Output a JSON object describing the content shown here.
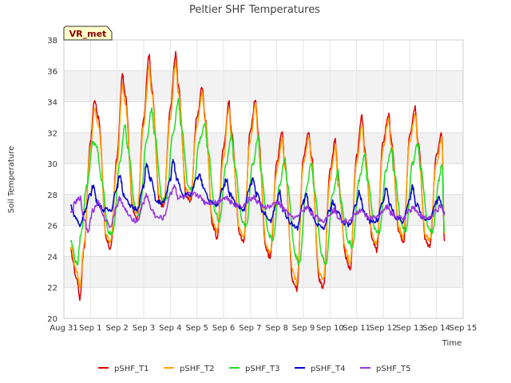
{
  "chart_data": {
    "type": "line",
    "title": "Peltier SHF Temperatures",
    "xlabel": "Time",
    "ylabel": "Soil Temperature",
    "badge": "VR_met",
    "ylim": [
      20,
      38
    ],
    "yticks": [
      20,
      22,
      24,
      26,
      28,
      30,
      32,
      34,
      36,
      38
    ],
    "xlim": [
      0,
      15
    ],
    "xticks": [
      {
        "pos": 0,
        "label": "Aug 31"
      },
      {
        "pos": 1,
        "label": "Sep 1"
      },
      {
        "pos": 2,
        "label": "Sep 2"
      },
      {
        "pos": 3,
        "label": "Sep 3"
      },
      {
        "pos": 4,
        "label": "Sep 4"
      },
      {
        "pos": 5,
        "label": "Sep 5"
      },
      {
        "pos": 6,
        "label": "Sep 6"
      },
      {
        "pos": 7,
        "label": "Sep 7"
      },
      {
        "pos": 8,
        "label": "Sep 8"
      },
      {
        "pos": 9,
        "label": "Sep 9"
      },
      {
        "pos": 10,
        "label": "Sep 10"
      },
      {
        "pos": 11,
        "label": "Sep 11"
      },
      {
        "pos": 12,
        "label": "Sep 12"
      },
      {
        "pos": 13,
        "label": "Sep 13"
      },
      {
        "pos": 14,
        "label": "Sep 14"
      },
      {
        "pos": 15,
        "label": "Sep 15"
      }
    ],
    "grid": true,
    "legend_position": "bottom",
    "series_x_note_days": "x values are days after Aug 31 00:00",
    "series": [
      {
        "name": "pSHF_T1",
        "color": "#dd0000",
        "x": [
          0.25,
          0.5,
          0.6,
          0.75,
          1.0,
          1.15,
          1.3,
          1.6,
          1.75,
          2.0,
          2.2,
          2.3,
          2.6,
          2.75,
          3.0,
          3.2,
          3.3,
          3.6,
          3.75,
          4.0,
          4.2,
          4.3,
          4.6,
          4.75,
          5.0,
          5.2,
          5.3,
          5.6,
          5.75,
          6.0,
          6.2,
          6.3,
          6.6,
          6.75,
          7.0,
          7.2,
          7.3,
          7.6,
          7.75,
          8.0,
          8.2,
          8.3,
          8.6,
          8.75,
          9.0,
          9.2,
          9.3,
          9.6,
          9.75,
          10.0,
          10.2,
          10.3,
          10.6,
          10.75,
          11.0,
          11.2,
          11.3,
          11.6,
          11.75,
          12.0,
          12.2,
          12.3,
          12.6,
          12.75,
          13.0,
          13.2,
          13.3,
          13.6,
          13.75,
          14.0,
          14.2,
          14.3
        ],
        "values": [
          24.3,
          22.5,
          21.3,
          24.5,
          31.5,
          34.1,
          33.0,
          25.0,
          24.5,
          30.5,
          35.7,
          34.5,
          27.0,
          26.5,
          33.0,
          37.0,
          35.0,
          27.5,
          27.2,
          33.5,
          37.1,
          35.0,
          28.0,
          27.5,
          33.0,
          35.0,
          33.0,
          26.0,
          25.2,
          31.0,
          34.0,
          32.0,
          25.5,
          24.9,
          32.0,
          34.2,
          32.0,
          24.5,
          23.9,
          30.0,
          32.0,
          30.0,
          22.5,
          21.9,
          30.5,
          32.0,
          30.5,
          22.5,
          22.0,
          29.5,
          31.5,
          29.0,
          24.0,
          23.1,
          30.5,
          33.0,
          31.0,
          25.0,
          24.4,
          31.5,
          33.2,
          31.5,
          25.5,
          24.8,
          32.0,
          33.7,
          31.5,
          25.0,
          24.7,
          30.5,
          31.9,
          25.0
        ]
      },
      {
        "name": "pSHF_T2",
        "color": "#ffa500",
        "x": [
          0.25,
          0.5,
          0.6,
          0.75,
          1.0,
          1.15,
          1.3,
          1.6,
          1.75,
          2.0,
          2.2,
          2.3,
          2.6,
          2.75,
          3.0,
          3.2,
          3.3,
          3.6,
          3.75,
          4.0,
          4.2,
          4.3,
          4.6,
          4.75,
          5.0,
          5.2,
          5.3,
          5.6,
          5.75,
          6.0,
          6.2,
          6.3,
          6.6,
          6.75,
          7.0,
          7.2,
          7.3,
          7.6,
          7.75,
          8.0,
          8.2,
          8.3,
          8.6,
          8.75,
          9.0,
          9.2,
          9.3,
          9.6,
          9.75,
          10.0,
          10.2,
          10.3,
          10.6,
          10.75,
          11.0,
          11.2,
          11.3,
          11.6,
          11.75,
          12.0,
          12.2,
          12.3,
          12.6,
          12.75,
          13.0,
          13.2,
          13.3,
          13.6,
          13.75,
          14.0,
          14.2,
          14.3
        ],
        "values": [
          24.6,
          23.0,
          22.0,
          24.7,
          31.0,
          33.5,
          32.5,
          25.4,
          24.9,
          30.0,
          35.0,
          34.0,
          27.3,
          26.8,
          32.5,
          36.3,
          34.6,
          27.8,
          27.5,
          33.0,
          36.5,
          34.6,
          28.3,
          27.8,
          32.5,
          34.5,
          32.7,
          26.3,
          25.6,
          30.5,
          33.5,
          31.6,
          25.8,
          25.3,
          31.5,
          33.8,
          31.6,
          24.8,
          24.3,
          29.5,
          31.6,
          29.7,
          23.0,
          22.3,
          30.0,
          31.6,
          30.2,
          22.9,
          22.5,
          29.0,
          31.1,
          28.7,
          24.3,
          23.6,
          30.0,
          32.5,
          30.6,
          25.3,
          24.8,
          31.0,
          32.8,
          31.1,
          25.8,
          25.2,
          31.5,
          33.2,
          31.1,
          25.3,
          25.1,
          30.0,
          31.7,
          25.5
        ]
      },
      {
        "name": "pSHF_T3",
        "color": "#22dd22",
        "x": [
          0.25,
          0.5,
          0.65,
          0.85,
          1.1,
          1.25,
          1.4,
          1.7,
          1.85,
          2.1,
          2.3,
          2.4,
          2.7,
          2.85,
          3.1,
          3.3,
          3.4,
          3.7,
          3.85,
          4.1,
          4.3,
          4.4,
          4.7,
          4.85,
          5.1,
          5.3,
          5.4,
          5.7,
          5.85,
          6.1,
          6.3,
          6.4,
          6.7,
          6.85,
          7.1,
          7.3,
          7.4,
          7.7,
          7.85,
          8.1,
          8.3,
          8.4,
          8.7,
          8.85,
          9.1,
          9.3,
          9.4,
          9.7,
          9.85,
          10.1,
          10.3,
          10.4,
          10.7,
          10.85,
          11.1,
          11.3,
          11.4,
          11.7,
          11.85,
          12.1,
          12.3,
          12.4,
          12.7,
          12.85,
          13.1,
          13.3,
          13.4,
          13.7,
          13.85,
          14.1,
          14.2,
          14.3
        ],
        "values": [
          25.0,
          23.5,
          25.5,
          28.5,
          31.4,
          31.0,
          29.0,
          25.5,
          25.6,
          30.0,
          32.6,
          31.0,
          27.0,
          26.6,
          31.5,
          33.5,
          32.0,
          27.6,
          27.7,
          32.0,
          34.1,
          32.5,
          28.3,
          28.3,
          31.5,
          32.5,
          31.0,
          26.8,
          26.3,
          30.0,
          31.9,
          30.0,
          26.3,
          25.9,
          30.0,
          31.8,
          29.6,
          25.4,
          25.0,
          28.5,
          30.3,
          28.6,
          24.0,
          23.5,
          28.3,
          30.0,
          28.4,
          24.0,
          23.5,
          28.0,
          29.5,
          27.5,
          25.0,
          24.6,
          29.0,
          30.6,
          29.0,
          25.7,
          25.5,
          29.5,
          31.0,
          29.5,
          26.0,
          25.6,
          30.0,
          31.3,
          29.7,
          25.8,
          25.6,
          29.0,
          30.0,
          25.6
        ]
      },
      {
        "name": "pSHF_T4",
        "color": "#0000cc",
        "x": [
          0.25,
          0.45,
          0.6,
          0.8,
          1.0,
          1.1,
          1.25,
          1.5,
          1.75,
          2.0,
          2.1,
          2.25,
          2.5,
          2.75,
          3.0,
          3.1,
          3.25,
          3.5,
          3.75,
          4.0,
          4.1,
          4.25,
          4.5,
          4.75,
          5.0,
          5.1,
          5.25,
          5.5,
          5.75,
          6.0,
          6.1,
          6.25,
          6.5,
          6.75,
          7.0,
          7.1,
          7.25,
          7.5,
          7.75,
          8.0,
          8.1,
          8.25,
          8.5,
          8.75,
          9.0,
          9.1,
          9.25,
          9.5,
          9.75,
          10.0,
          10.1,
          10.25,
          10.5,
          10.75,
          11.0,
          11.1,
          11.25,
          11.5,
          11.75,
          12.0,
          12.1,
          12.25,
          12.5,
          12.75,
          13.0,
          13.1,
          13.25,
          13.5,
          13.75,
          14.0,
          14.1,
          14.3
        ],
        "values": [
          27.3,
          26.5,
          26.0,
          27.0,
          28.0,
          28.6,
          27.5,
          27.0,
          27.0,
          28.5,
          29.3,
          28.0,
          27.2,
          27.1,
          28.5,
          30.0,
          29.0,
          27.5,
          27.5,
          29.0,
          30.2,
          29.0,
          28.0,
          28.0,
          29.0,
          29.2,
          28.5,
          27.5,
          27.3,
          28.5,
          29.0,
          28.0,
          27.3,
          27.0,
          28.5,
          29.0,
          28.0,
          26.8,
          26.3,
          27.5,
          28.2,
          27.0,
          26.2,
          25.8,
          27.5,
          28.0,
          27.0,
          26.0,
          25.8,
          27.0,
          27.5,
          27.0,
          26.2,
          26.0,
          27.5,
          28.2,
          27.0,
          26.3,
          26.3,
          27.5,
          28.4,
          27.3,
          26.5,
          26.3,
          27.8,
          28.5,
          27.3,
          26.5,
          26.5,
          27.5,
          27.8,
          26.9
        ]
      },
      {
        "name": "pSHF_T5",
        "color": "#9933dd",
        "x": [
          0.25,
          0.45,
          0.6,
          0.75,
          0.9,
          1.1,
          1.3,
          1.5,
          1.75,
          2.0,
          2.1,
          2.3,
          2.5,
          2.75,
          3.0,
          3.1,
          3.3,
          3.5,
          3.75,
          4.0,
          4.15,
          4.3,
          4.5,
          4.75,
          5.0,
          5.15,
          5.3,
          5.5,
          5.75,
          6.0,
          6.15,
          6.3,
          6.5,
          6.75,
          7.0,
          7.15,
          7.3,
          7.5,
          7.75,
          8.0,
          8.15,
          8.3,
          8.5,
          8.75,
          9.0,
          9.15,
          9.3,
          9.5,
          9.75,
          10.0,
          10.15,
          10.3,
          10.5,
          10.75,
          11.0,
          11.15,
          11.3,
          11.5,
          11.75,
          12.0,
          12.15,
          12.3,
          12.5,
          12.75,
          13.0,
          13.15,
          13.3,
          13.5,
          13.75,
          14.0,
          14.15,
          14.3
        ],
        "values": [
          26.8,
          27.5,
          27.8,
          26.5,
          25.7,
          27.0,
          27.5,
          26.5,
          26.0,
          27.3,
          27.8,
          27.0,
          26.5,
          26.3,
          27.5,
          28.0,
          27.0,
          26.5,
          26.5,
          28.0,
          28.6,
          27.8,
          27.8,
          28.0,
          28.0,
          27.8,
          27.5,
          27.5,
          27.5,
          27.8,
          27.8,
          27.5,
          27.3,
          27.3,
          27.7,
          27.8,
          27.5,
          27.2,
          27.2,
          27.5,
          27.3,
          27.0,
          26.6,
          26.5,
          27.0,
          27.2,
          26.8,
          26.5,
          26.3,
          26.8,
          27.0,
          26.6,
          26.3,
          26.3,
          26.8,
          27.0,
          26.7,
          26.5,
          26.5,
          27.0,
          27.2,
          26.8,
          26.5,
          26.5,
          27.0,
          27.2,
          26.8,
          26.5,
          26.5,
          27.0,
          27.2,
          26.8
        ]
      }
    ]
  }
}
